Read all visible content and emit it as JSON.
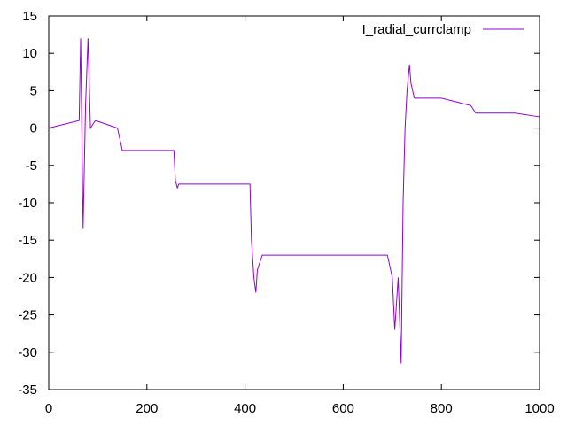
{
  "chart_data": {
    "type": "line",
    "title": "",
    "xlabel": "",
    "ylabel": "",
    "xlim": [
      0,
      1000
    ],
    "ylim": [
      -35,
      15
    ],
    "x_ticks": [
      0,
      200,
      400,
      600,
      800,
      1000
    ],
    "y_ticks": [
      15,
      10,
      5,
      0,
      -5,
      -10,
      -15,
      -20,
      -25,
      -30,
      -35
    ],
    "grid": false,
    "legend_position": "top-right",
    "series": [
      {
        "name": "I_radial_currclamp",
        "color": "#9400d3",
        "x": [
          0,
          62,
          65,
          70,
          75,
          80,
          85,
          95,
          140,
          150,
          190,
          255,
          258,
          262,
          265,
          410,
          413,
          418,
          422,
          425,
          435,
          690,
          700,
          705,
          712,
          718,
          722,
          726,
          730,
          735,
          738,
          745,
          800,
          860,
          870,
          950,
          1000
        ],
        "y": [
          0,
          1,
          12,
          -13.5,
          3,
          12,
          0,
          1,
          0,
          -3,
          -3,
          -3,
          -7,
          -8,
          -7.5,
          -7.5,
          -15,
          -20,
          -22,
          -19,
          -17,
          -17,
          -20,
          -27,
          -20,
          -31.5,
          -10,
          0,
          5,
          8.5,
          6,
          4,
          4,
          3,
          2,
          2,
          1.5
        ]
      }
    ]
  }
}
